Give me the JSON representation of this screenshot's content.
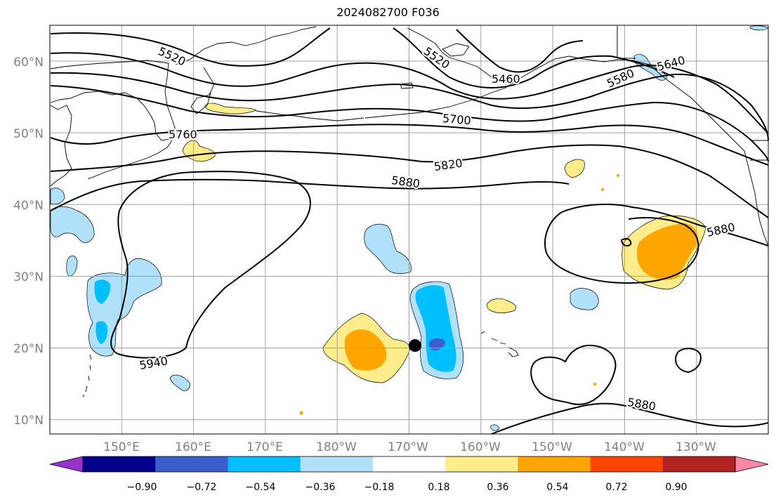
{
  "title": "2024082700 F036",
  "map": {
    "lat_labels": [
      "60°N",
      "50°N",
      "40°N",
      "30°N",
      "20°N",
      "10°N"
    ],
    "lat_values": [
      60,
      50,
      40,
      30,
      20,
      10
    ],
    "lon_labels": [
      "150°E",
      "160°E",
      "170°E",
      "180°W",
      "170°W",
      "160°W",
      "150°W",
      "140°W",
      "130°W"
    ],
    "lon_values": [
      150,
      160,
      170,
      180,
      190,
      200,
      210,
      220,
      230
    ],
    "extent": {
      "lon_min": 140,
      "lon_max": 240,
      "lat_min": 8,
      "lat_max": 65
    },
    "gridlines": true,
    "contour_labels": [
      "5520",
      "5520",
      "5460",
      "5580",
      "5640",
      "5700",
      "5760",
      "5820",
      "5880",
      "5880",
      "5880",
      "5940"
    ],
    "storm_marker": {
      "lon": 190.5,
      "lat": 20.3
    }
  },
  "colorbar": {
    "ticks": [
      "−0.90",
      "−0.72",
      "−0.54",
      "−0.36",
      "−0.18",
      "0.18",
      "0.36",
      "0.54",
      "0.72",
      "0.90"
    ],
    "colors": [
      "#9932cc",
      "#00008b",
      "#3a5fcd",
      "#00bfff",
      "#b0e0fa",
      "#ffffff",
      "#ffec8b",
      "#ffa500",
      "#ff4500",
      "#b22222",
      "#ff88aa"
    ]
  },
  "colors": {
    "contour": "#000000",
    "coast": "#000000",
    "grid": "#a0a0a0"
  }
}
